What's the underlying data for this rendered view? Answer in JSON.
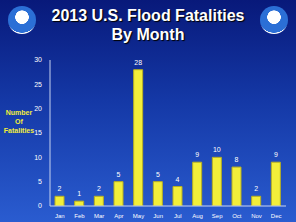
{
  "chart_data": {
    "type": "bar",
    "title": "2013 U.S. Flood Fatalities By Month",
    "y_label": "Number Of Fatalities",
    "categories": [
      "Jan",
      "Feb",
      "Mar",
      "Apr",
      "May",
      "Jun",
      "Jul",
      "Aug",
      "Sep",
      "Oct",
      "Nov",
      "Dec"
    ],
    "values": [
      2,
      1,
      2,
      5,
      28,
      5,
      4,
      9,
      10,
      8,
      2,
      9
    ],
    "color": "#f2ee3a",
    "ylim": [
      0,
      30
    ],
    "yticks": [
      0,
      5,
      10,
      15,
      20,
      25,
      30
    ],
    "grid": false,
    "data_labels": true
  }
}
